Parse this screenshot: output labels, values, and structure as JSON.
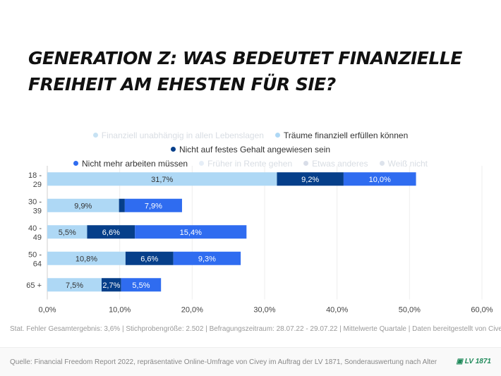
{
  "title": "GENERATION Z: WAS BEDEUTET FINANZIELLE FREIHEIT AM EHESTEN FÜR SIE?",
  "legend": [
    {
      "label": "Finanziell unabhängig in allen Lebenslagen",
      "color": "#c7e2f3",
      "active": false
    },
    {
      "label": "Träume finanziell erfüllen können",
      "color": "#aed8f5",
      "active": true
    },
    {
      "label": "Nicht auf festes Gehalt angewiesen sein",
      "color": "#063f8a",
      "active": true
    },
    {
      "label": "Nicht mehr arbeiten müssen",
      "color": "#2f6cf0",
      "active": true
    },
    {
      "label": "Früher in Rente gehen",
      "color": "#e6eef7",
      "active": false
    },
    {
      "label": "Etwas anderes",
      "color": "#d8dde8",
      "active": false
    },
    {
      "label": "Weiß nicht",
      "color": "#dde3ec",
      "active": false
    }
  ],
  "chart_data": {
    "type": "bar",
    "orientation": "horizontal",
    "stacked": true,
    "categories": [
      [
        "18 -",
        "29"
      ],
      [
        "30 -",
        "39"
      ],
      [
        "40 -",
        "49"
      ],
      [
        "50 -",
        "64"
      ],
      [
        "65 +"
      ]
    ],
    "series": [
      {
        "name": "Träume finanziell erfüllen können",
        "color": "#aed8f5",
        "label_color": "#333",
        "values": [
          31.7,
          9.9,
          5.5,
          10.8,
          7.5
        ],
        "labels": [
          "31,7%",
          "9,9%",
          "5,5%",
          "10,8%",
          "7,5%"
        ]
      },
      {
        "name": "Nicht auf festes Gehalt angewiesen sein",
        "color": "#063f8a",
        "label_color": "#fff",
        "values": [
          9.2,
          0.8,
          6.6,
          6.6,
          2.7
        ],
        "labels": [
          "9,2%",
          "",
          "6,6%",
          "6,6%",
          "2,7%"
        ]
      },
      {
        "name": "Nicht mehr arbeiten müssen",
        "color": "#2f6cf0",
        "label_color": "#fff",
        "values": [
          10.0,
          7.9,
          15.4,
          9.3,
          5.5
        ],
        "labels": [
          "10,0%",
          "7,9%",
          "15,4%",
          "9,3%",
          "5,5%"
        ]
      }
    ],
    "xlim": [
      0,
      60
    ],
    "xticks": [
      0,
      10,
      20,
      30,
      40,
      50,
      60
    ],
    "xtick_labels": [
      "0,0%",
      "10,0%",
      "20,0%",
      "30,0%",
      "40,0%",
      "50,0%",
      "60,0%"
    ],
    "grid": true
  },
  "note": "Stat. Fehler Gesamtergebnis: 3,6% | Stichprobengröße: 2.502 | Befragungszeitraum: 28.07.22 - 29.07.22 | Mittelwerte Quartale | Daten bereitgestellt von Civey",
  "source": "Quelle: Financial Freedom Report 2022, repräsentative Online-Umfrage von Civey im Auftrag der LV 1871, Sonderauswertung nach Alter",
  "logo": "LV 1871"
}
